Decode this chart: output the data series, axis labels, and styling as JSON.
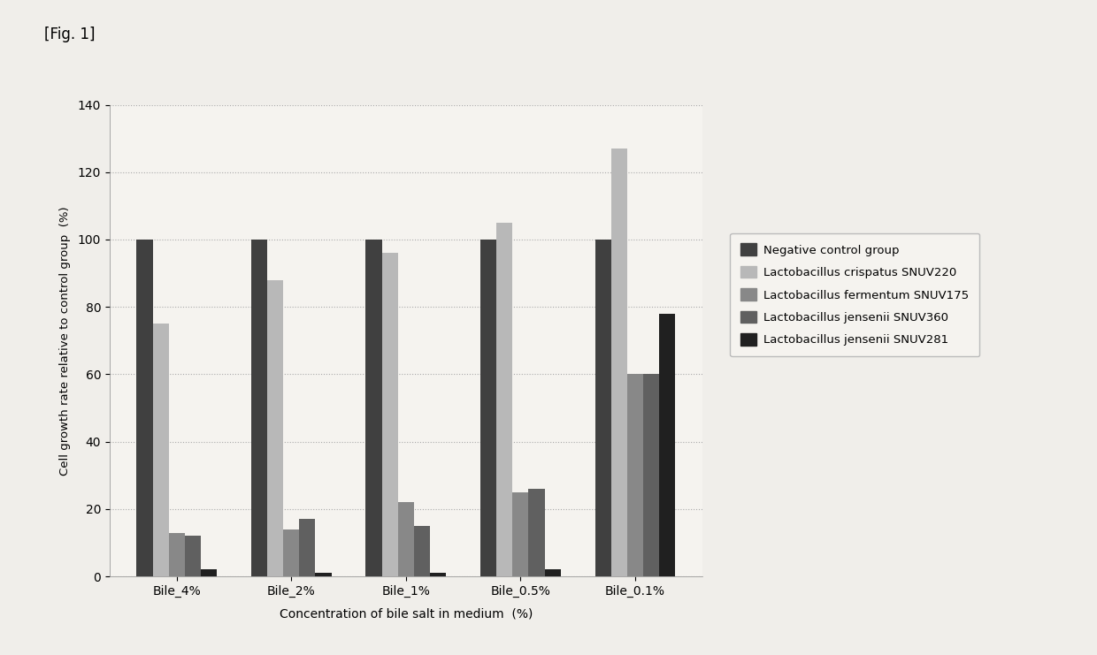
{
  "categories": [
    "Bile_4%",
    "Bile_2%",
    "Bile_1%",
    "Bile_0.5%",
    "Bile_0.1%"
  ],
  "series": {
    "Negative control group": [
      100,
      100,
      100,
      100,
      100
    ],
    "Lactobacillus crispatus SNUV220": [
      75,
      88,
      96,
      105,
      127
    ],
    "Lactobacillus fermentum SNUV175": [
      13,
      14,
      22,
      25,
      60
    ],
    "Lactobacillus jensenii SNUV360": [
      12,
      17,
      15,
      26,
      60
    ],
    "Lactobacillus jensenii SNUV281": [
      2,
      1,
      1,
      2,
      78
    ]
  },
  "colors": {
    "Negative control group": "#404040",
    "Lactobacillus crispatus SNUV220": "#b8b8b8",
    "Lactobacillus fermentum SNUV175": "#888888",
    "Lactobacillus jensenii SNUV360": "#606060",
    "Lactobacillus jensenii SNUV281": "#202020"
  },
  "ylabel": "Cell growth rate relative to control group  (%)",
  "xlabel": "Concentration of bile salt in medium  (%)",
  "ylim": [
    0,
    140
  ],
  "yticks": [
    0,
    20,
    40,
    60,
    80,
    100,
    120,
    140
  ],
  "title": "[Fig. 1]",
  "background_color": "#f0eeea",
  "plot_bg_color": "#f5f3ef",
  "grid_color": "#aaaaaa",
  "legend_entries": [
    "Negative control group",
    "Lactobacillus crispatus SNUV220",
    "Lactobacillus fermentum SNUV175",
    "Lactobacillus jensenii SNUV360",
    "Lactobacillus jensenii SNUV281"
  ]
}
